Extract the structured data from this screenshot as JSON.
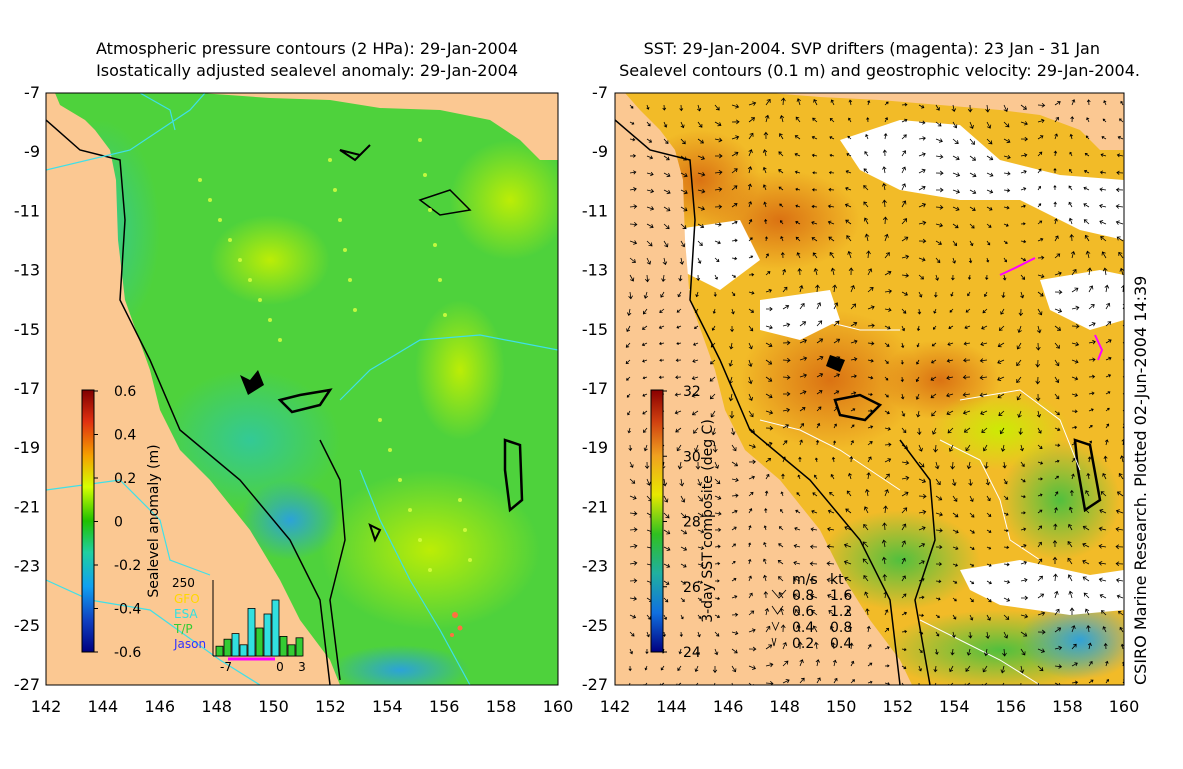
{
  "left_panel": {
    "title_line1": "Atmospheric pressure contours (2 HPa): 29-Jan-2004",
    "title_line2": "Isostatically adjusted sealevel anomaly: 29-Jan-2004",
    "colorbar": {
      "label": "Sealevel anomaly (m)",
      "ticks": [
        "0.6",
        "0.4",
        "0.2",
        "0",
        "-0.2",
        "-0.4",
        "-0.6"
      ]
    },
    "histogram": {
      "ymax_label": "250",
      "x_ticks": [
        "-7",
        "0",
        "3"
      ],
      "legend": [
        {
          "name": "GFO",
          "color": "#ffd700"
        },
        {
          "name": "ESA",
          "color": "#32e0e0"
        },
        {
          "name": "T/P",
          "color": "#33cc33"
        },
        {
          "name": "Jason",
          "color": "#3333ff"
        }
      ],
      "bars": [
        {
          "value": 35,
          "color": "#33cc33"
        },
        {
          "value": 60,
          "color": "#33cc33"
        },
        {
          "value": 80,
          "color": "#32e0e0"
        },
        {
          "value": 40,
          "color": "#32e0e0"
        },
        {
          "value": 170,
          "color": "#32e0e0"
        },
        {
          "value": 100,
          "color": "#33cc33"
        },
        {
          "value": 150,
          "color": "#32e0e0"
        },
        {
          "value": 200,
          "color": "#32e0e0"
        },
        {
          "value": 70,
          "color": "#33cc33"
        },
        {
          "value": 40,
          "color": "#33cc33"
        },
        {
          "value": 65,
          "color": "#33cc33"
        }
      ]
    }
  },
  "right_panel": {
    "title_line1": "SST: 29-Jan-2004. SVP drifters (magenta): 23 Jan - 31 Jan",
    "title_line2": "Sealevel contours (0.1 m) and geostrophic velocity: 29-Jan-2004.",
    "colorbar": {
      "label": "3-day SST composite (deg C)",
      "ticks": [
        "32",
        "30",
        "28",
        "26",
        "24"
      ]
    },
    "velocity_legend": {
      "header_ms": "m/s",
      "header_kt": "kt",
      "rows": [
        {
          "ms": "0.8",
          "kt": "1.6"
        },
        {
          "ms": "0.6",
          "kt": "1.2"
        },
        {
          "ms": "0.4",
          "kt": "0.8"
        },
        {
          "ms": "0.2",
          "kt": "0.4"
        }
      ]
    },
    "credit": "CSIRO Marine Research. Plotted 02-Jun-2004 14:39"
  },
  "axes": {
    "y_labels": [
      "-7",
      "-9",
      "-11",
      "-13",
      "-15",
      "-17",
      "-19",
      "-21",
      "-23",
      "-25",
      "-27"
    ],
    "x_labels": [
      "142",
      "144",
      "146",
      "148",
      "150",
      "152",
      "154",
      "156",
      "158",
      "160"
    ]
  },
  "colors": {
    "land": "#fbc892",
    "ocean_base": "#4ed23c",
    "sst_base": "#f2bb28",
    "contour_cyan": "#3fe0e8",
    "drifter": "#ff00ff"
  }
}
